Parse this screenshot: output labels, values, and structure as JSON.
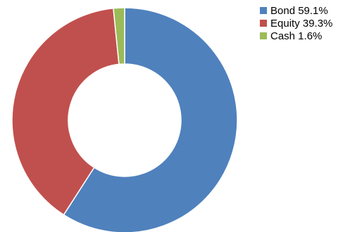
{
  "chart_data": {
    "type": "pie",
    "style": "donut",
    "legend_position": "top-right",
    "slices": [
      {
        "label": "Bond 59.1%",
        "value": 59.1,
        "color": "#4F81BD"
      },
      {
        "label": "Equity 39.3%",
        "value": 39.3,
        "color": "#C0504D"
      },
      {
        "label": "Cash 1.6%",
        "value": 1.6,
        "color": "#9BBB59"
      }
    ]
  }
}
